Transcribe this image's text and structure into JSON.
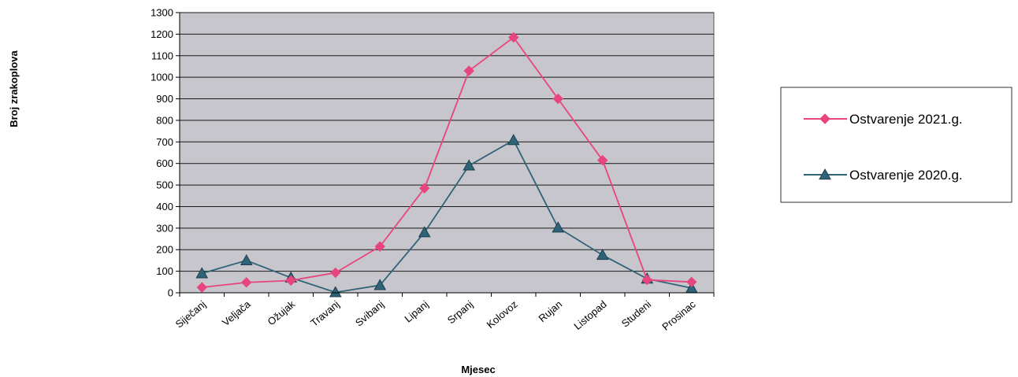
{
  "chart_data": {
    "type": "line",
    "title": "",
    "xlabel": "Mjesec",
    "ylabel": "Broj zrakoplova",
    "ylim": [
      0,
      1300
    ],
    "yticks": [
      0,
      100,
      200,
      300,
      400,
      500,
      600,
      700,
      800,
      900,
      1000,
      1100,
      1200,
      1300
    ],
    "grid": true,
    "legend_position": "right",
    "categories": [
      "Siječanj",
      "Veljača",
      "Ožujak",
      "Travanj",
      "Svibanj",
      "Lipanj",
      "Srpanj",
      "Kolovoz",
      "Rujan",
      "Listopad",
      "Studeni",
      "Prosinac"
    ],
    "series": [
      {
        "name": "Ostvarenje 2021.g.",
        "color": "#e8457f",
        "marker": "diamond",
        "values": [
          25,
          48,
          57,
          93,
          215,
          485,
          1030,
          1185,
          900,
          615,
          60,
          50
        ]
      },
      {
        "name": "Ostvarenje 2020.g.",
        "color": "#2f6377",
        "marker": "triangle",
        "values": [
          90,
          150,
          70,
          2,
          35,
          280,
          590,
          708,
          302,
          175,
          65,
          22
        ]
      }
    ],
    "colors": {
      "plot_background": "#c6c6cc",
      "gridline": "#1a1a1a"
    }
  }
}
